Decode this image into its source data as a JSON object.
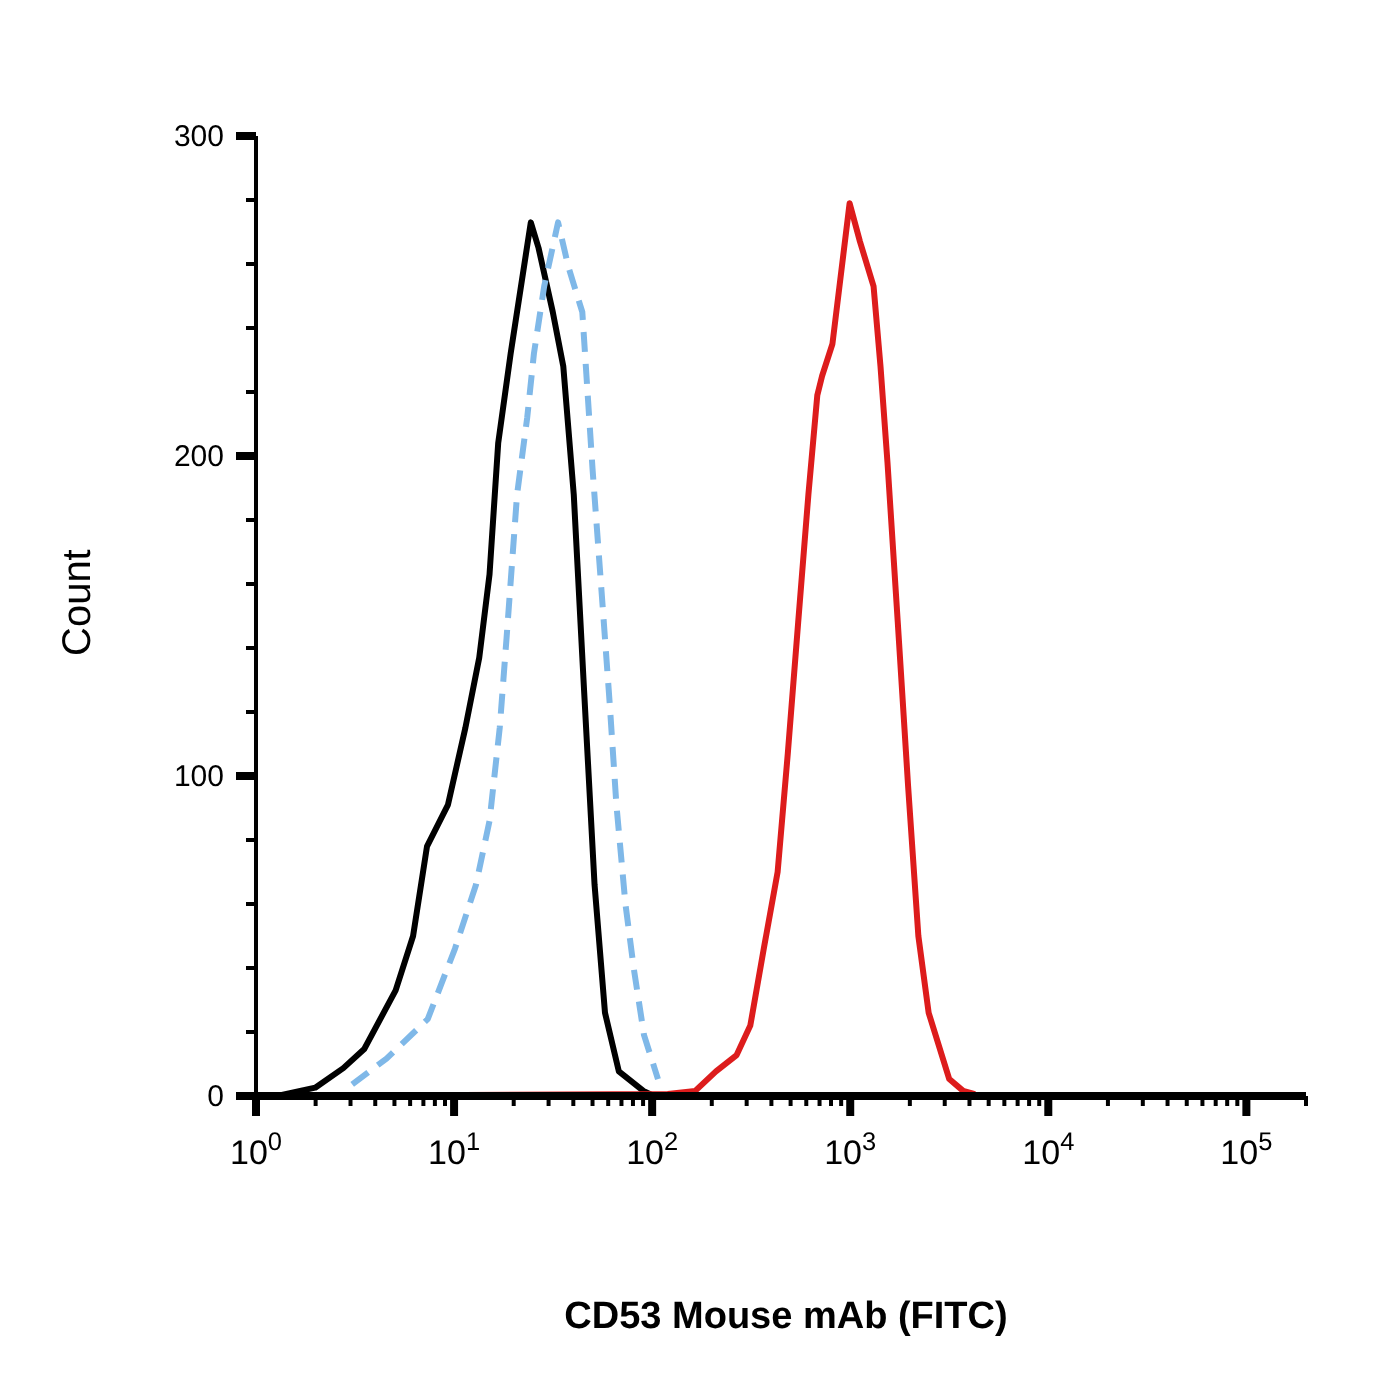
{
  "chart_data": {
    "type": "line",
    "xlabel": "CD53 Mouse mAb (FITC)",
    "ylabel": "Count",
    "log": "x",
    "grid": false,
    "marker": "none",
    "xlim": [
      1,
      200000
    ],
    "ylim": [
      0,
      300
    ],
    "xticks": [
      {
        "value": 1,
        "label": "10$^{0}$"
      },
      {
        "value": 2,
        "label": null
      },
      {
        "value": 3,
        "label": null
      },
      {
        "value": 4,
        "label": null
      },
      {
        "value": 5,
        "label": null
      },
      {
        "value": 6,
        "label": null
      },
      {
        "value": 7,
        "label": null
      },
      {
        "value": 8,
        "label": null
      },
      {
        "value": 9,
        "label": null
      },
      {
        "value": 10,
        "label": "10$^{1}$"
      },
      {
        "value": 20,
        "label": null
      },
      {
        "value": 30,
        "label": null
      },
      {
        "value": 40,
        "label": null
      },
      {
        "value": 50,
        "label": null
      },
      {
        "value": 60,
        "label": null
      },
      {
        "value": 70,
        "label": null
      },
      {
        "value": 80,
        "label": null
      },
      {
        "value": 90,
        "label": null
      },
      {
        "value": 100,
        "label": "10$^{2}$"
      },
      {
        "value": 200,
        "label": null
      },
      {
        "value": 300,
        "label": null
      },
      {
        "value": 400,
        "label": null
      },
      {
        "value": 500,
        "label": null
      },
      {
        "value": 600,
        "label": null
      },
      {
        "value": 700,
        "label": null
      },
      {
        "value": 800,
        "label": null
      },
      {
        "value": 900,
        "label": null
      },
      {
        "value": 1000,
        "label": "10$^{3}$"
      },
      {
        "value": 2000,
        "label": null
      },
      {
        "value": 3000,
        "label": null
      },
      {
        "value": 4000,
        "label": null
      },
      {
        "value": 5000,
        "label": null
      },
      {
        "value": 6000,
        "label": null
      },
      {
        "value": 7000,
        "label": null
      },
      {
        "value": 8000,
        "label": null
      },
      {
        "value": 9000,
        "label": null
      },
      {
        "value": 10000,
        "label": "10$^{4}$"
      },
      {
        "value": 20000,
        "label": null
      },
      {
        "value": 30000,
        "label": null
      },
      {
        "value": 40000,
        "label": null
      },
      {
        "value": 50000,
        "label": null
      },
      {
        "value": 60000,
        "label": null
      },
      {
        "value": 70000,
        "label": null
      },
      {
        "value": 80000,
        "label": null
      },
      {
        "value": 90000,
        "label": null
      },
      {
        "value": 100000,
        "label": "10$^{5}$"
      },
      {
        "value": 200000,
        "label": null
      }
    ],
    "yticks": [
      0,
      {
        "value": 20,
        "label": null
      },
      {
        "value": 40,
        "label": null
      },
      {
        "value": 60,
        "label": null
      },
      {
        "value": 80,
        "label": null
      },
      100,
      {
        "value": 120,
        "label": null
      },
      {
        "value": 140,
        "label": null
      },
      {
        "value": 160,
        "label": null
      },
      {
        "value": 180,
        "label": null
      },
      200,
      {
        "value": 220,
        "label": null
      },
      {
        "value": 240,
        "label": null
      },
      {
        "value": 260,
        "label": null
      },
      {
        "value": 280,
        "label": null
      },
      300
    ],
    "series": [
      {
        "color": "#000000",
        "line_style": "solid",
        "x": [
          1.28,
          1.99,
          2.76,
          3.52,
          5.07,
          6.21,
          7.3,
          9.31,
          11.4,
          13.4,
          15.1,
          16.7,
          19.3,
          24.4,
          26.7,
          31.5,
          35.6,
          40.2,
          45.3,
          51.2,
          57.8,
          67.9,
          90.3,
          102
        ],
        "values": [
          0,
          2.6,
          8.7,
          14.7,
          33,
          50,
          78,
          91,
          115,
          137,
          163,
          204,
          232,
          273,
          265,
          245,
          228,
          188,
          127,
          66,
          26,
          7.7,
          1.6,
          0
        ]
      },
      {
        "color": "#7fb8e8",
        "line_style": "dashed",
        "x": [
          3.06,
          4.56,
          7.36,
          10.1,
          12.9,
          15.1,
          17,
          18.4,
          20.8,
          23.4,
          25.3,
          28.5,
          33.5,
          37.8,
          44.4,
          50,
          56.4,
          61,
          66,
          73.3,
          80.7,
          91,
          107
        ],
        "values": [
          3.6,
          11.7,
          24,
          46,
          66,
          86,
          115,
          143,
          188,
          212,
          232,
          253,
          273,
          259,
          245,
          196,
          152,
          123,
          91,
          60,
          40,
          19,
          5.3
        ]
      },
      {
        "color": "#dd1c1c",
        "line_style": "solid",
        "x": [
          1.3,
          120,
          165,
          210,
          267,
          313,
          366,
          430,
          484,
          546,
          615,
          682,
          721,
          813,
          993,
          1120,
          1312,
          1422,
          1542,
          1738,
          1959,
          2208,
          2489,
          3162,
          3716,
          4266
        ],
        "values": [
          0,
          0.6,
          1.6,
          7.7,
          12.8,
          22,
          46,
          70,
          107,
          148,
          188,
          219,
          225,
          235,
          279,
          267,
          253,
          228,
          198,
          148,
          97,
          50,
          26,
          5.3,
          1.6,
          0.6
        ]
      }
    ]
  }
}
